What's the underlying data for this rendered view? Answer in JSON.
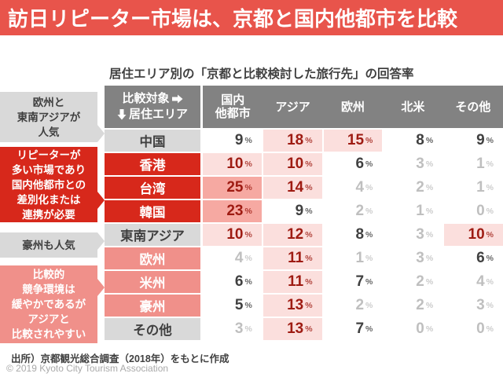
{
  "title": "訪日リピーター市場は、京都と国内他都市を比較",
  "subtitle": "居住エリア別の「京都と比較検討した旅行先」の回答率",
  "table": {
    "corner_top": "比較対象",
    "corner_bottom": "居住エリア",
    "columns": [
      "国内\n他都市",
      "アジア",
      "欧州",
      "北米",
      "その他"
    ],
    "unit": "%",
    "rows": [
      {
        "label": "中国",
        "style": "gray",
        "values": [
          9,
          18,
          15,
          8,
          9
        ]
      },
      {
        "label": "香港",
        "style": "red",
        "values": [
          10,
          10,
          6,
          3,
          1
        ]
      },
      {
        "label": "台湾",
        "style": "red",
        "values": [
          25,
          14,
          4,
          2,
          1
        ]
      },
      {
        "label": "韓国",
        "style": "red",
        "values": [
          23,
          9,
          2,
          1,
          0
        ]
      },
      {
        "label": "東南アジア",
        "style": "gray",
        "values": [
          10,
          12,
          8,
          3,
          10
        ]
      },
      {
        "label": "欧州",
        "style": "salmon",
        "values": [
          4,
          11,
          1,
          3,
          6
        ]
      },
      {
        "label": "米州",
        "style": "salmon",
        "values": [
          6,
          11,
          7,
          2,
          4
        ]
      },
      {
        "label": "豪州",
        "style": "salmon",
        "values": [
          5,
          13,
          2,
          2,
          3
        ]
      },
      {
        "label": "その他",
        "style": "gray",
        "values": [
          3,
          13,
          7,
          0,
          0
        ]
      }
    ]
  },
  "annotations": [
    {
      "text": "欧州と\n東南アジアが\n人気",
      "style": "gray"
    },
    {
      "text": "リピーターが\n多い市場であり\n国内他都市との\n差別化または\n連携が必要",
      "style": "red"
    },
    {
      "text": "豪州も人気",
      "style": "gray"
    },
    {
      "text": "比較的\n競争環境は\n緩やかであるが\nアジアと\n比較されやすい",
      "style": "salmon"
    }
  ],
  "source": "出所）京都観光総合調査（2018年）をもとに作成",
  "copyright": "© 2019 Kyoto City Tourism Association",
  "colors": {
    "title_red": "#E8544B",
    "strong_red": "#D7281B",
    "salmon": "#F0908A",
    "light_gray": "#D9D9D9",
    "header_gray": "#828282",
    "highlight_pink": "#FBDFDD",
    "highlight_pink_strong": "#F6A9A2",
    "value_red": "#9E1B12",
    "value_dark": "#404040",
    "value_light": "#BFBFBF"
  },
  "chart_data": {
    "type": "table",
    "title": "居住エリア別の「京都と比較検討した旅行先」の回答率",
    "row_axis": "居住エリア",
    "column_axis": "比較対象",
    "columns": [
      "国内他都市",
      "アジア",
      "欧州",
      "北米",
      "その他"
    ],
    "unit": "%",
    "rows": [
      {
        "label": "中国",
        "values": [
          9,
          18,
          15,
          8,
          9
        ]
      },
      {
        "label": "香港",
        "values": [
          10,
          10,
          6,
          3,
          1
        ]
      },
      {
        "label": "台湾",
        "values": [
          25,
          14,
          4,
          2,
          1
        ]
      },
      {
        "label": "韓国",
        "values": [
          23,
          9,
          2,
          1,
          0
        ]
      },
      {
        "label": "東南アジア",
        "values": [
          10,
          12,
          8,
          3,
          10
        ]
      },
      {
        "label": "欧州",
        "values": [
          4,
          11,
          1,
          3,
          6
        ]
      },
      {
        "label": "米州",
        "values": [
          6,
          11,
          7,
          2,
          4
        ]
      },
      {
        "label": "豪州",
        "values": [
          5,
          13,
          2,
          2,
          3
        ]
      },
      {
        "label": "その他",
        "values": [
          3,
          13,
          7,
          0,
          0
        ]
      }
    ],
    "highlight_rule": "セル値10%以上を薄いピンクで強調、20%以上は濃いピンク、5〜9%は濃灰色文字、4%以下は薄灰色文字"
  }
}
